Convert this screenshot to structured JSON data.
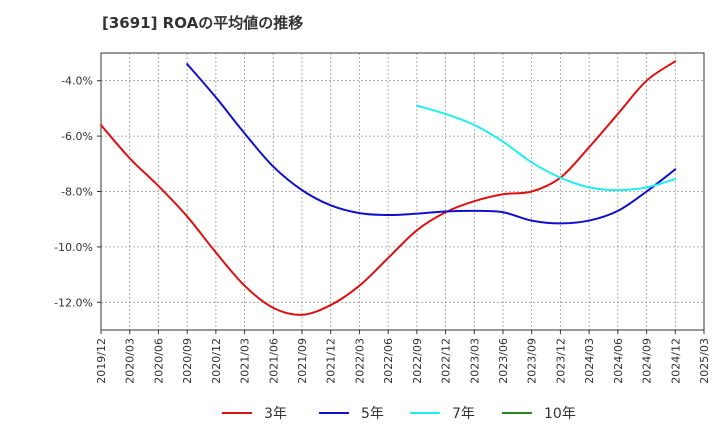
{
  "chart_data": {
    "type": "line",
    "title": "[3691]  ROAの平均値の推移",
    "xlabel": "",
    "ylabel": "",
    "ylim": [
      -13.0,
      -3.0
    ],
    "y_ticks": [
      -4.0,
      -6.0,
      -8.0,
      -10.0,
      -12.0
    ],
    "y_tick_labels": [
      "-4.0%",
      "-6.0%",
      "-8.0%",
      "-10.0%",
      "-12.0%"
    ],
    "x_tick_labels": [
      "2019/12",
      "2020/03",
      "2020/06",
      "2020/09",
      "2020/12",
      "2021/03",
      "2021/06",
      "2021/09",
      "2021/12",
      "2022/03",
      "2022/06",
      "2022/09",
      "2022/12",
      "2023/03",
      "2023/06",
      "2023/09",
      "2023/12",
      "2024/03",
      "2024/06",
      "2024/09",
      "2024/12",
      "2025/03"
    ],
    "grid": true,
    "legend_position": "bottom",
    "series": [
      {
        "name": "3年",
        "color": "#dd1111",
        "x": [
          "2019/12",
          "2020/03",
          "2020/06",
          "2020/09",
          "2020/12",
          "2021/03",
          "2021/06",
          "2021/09",
          "2021/12",
          "2022/03",
          "2022/06",
          "2022/09",
          "2022/12",
          "2023/03",
          "2023/06",
          "2023/09",
          "2023/12",
          "2024/03",
          "2024/06",
          "2024/09",
          "2024/12"
        ],
        "values": [
          -5.6,
          -6.8,
          -7.8,
          -8.9,
          -10.2,
          -11.4,
          -12.2,
          -12.45,
          -12.1,
          -11.4,
          -10.4,
          -9.4,
          -8.75,
          -8.35,
          -8.1,
          -8.0,
          -7.5,
          -6.4,
          -5.2,
          -4.0,
          -3.3
        ]
      },
      {
        "name": "5年",
        "color": "#1111cc",
        "x": [
          "2020/09",
          "2020/12",
          "2021/03",
          "2021/06",
          "2021/09",
          "2021/12",
          "2022/03",
          "2022/06",
          "2022/09",
          "2022/12",
          "2023/03",
          "2023/06",
          "2023/09",
          "2023/12",
          "2024/03",
          "2024/06",
          "2024/09",
          "2024/12"
        ],
        "values": [
          -3.4,
          -4.6,
          -5.9,
          -7.1,
          -7.95,
          -8.5,
          -8.78,
          -8.85,
          -8.8,
          -8.72,
          -8.7,
          -8.75,
          -9.05,
          -9.15,
          -9.05,
          -8.7,
          -8.0,
          -7.2
        ]
      },
      {
        "name": "7年",
        "color": "#22eeee",
        "x": [
          "2022/09",
          "2022/12",
          "2023/03",
          "2023/06",
          "2023/09",
          "2023/12",
          "2024/03",
          "2024/06",
          "2024/09",
          "2024/12"
        ],
        "values": [
          -4.9,
          -5.2,
          -5.6,
          -6.2,
          -6.95,
          -7.5,
          -7.85,
          -7.95,
          -7.85,
          -7.55
        ]
      },
      {
        "name": "10年",
        "color": "#228822",
        "x": [],
        "values": []
      }
    ]
  }
}
